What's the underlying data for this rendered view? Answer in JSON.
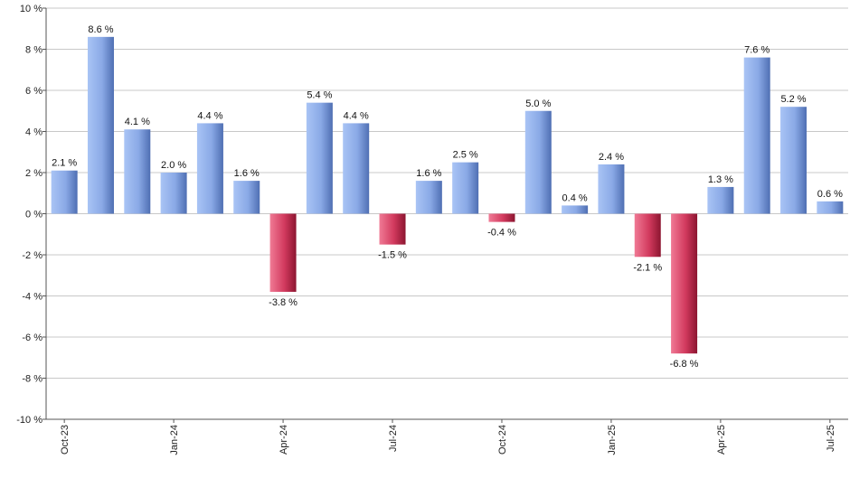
{
  "chart_data": {
    "type": "bar",
    "x": [
      "Oct-23",
      "Nov-23",
      "Dec-23",
      "Jan-24",
      "Feb-24",
      "Mar-24",
      "Apr-24",
      "May-24",
      "Jun-24",
      "Jul-24",
      "Aug-24",
      "Sep-24",
      "Oct-24",
      "Nov-24",
      "Dec-24",
      "Jan-25",
      "Feb-25",
      "Mar-25",
      "Apr-25",
      "May-25",
      "Jun-25",
      "Jul-25"
    ],
    "values": [
      2.1,
      8.6,
      4.1,
      2.0,
      4.4,
      1.6,
      -3.8,
      5.4,
      4.4,
      -1.5,
      1.6,
      2.5,
      -0.4,
      5.0,
      0.4,
      2.4,
      -2.1,
      -6.8,
      1.3,
      7.6,
      5.2,
      0.6
    ],
    "data_labels": [
      "2.1 %",
      "8.6 %",
      "4.1 %",
      "2.0 %",
      "4.4 %",
      "1.6 %",
      "-3.8 %",
      "5.4 %",
      "4.4 %",
      "-1.5 %",
      "1.6 %",
      "2.5 %",
      "-0.4 %",
      "5.0 %",
      "0.4 %",
      "2.4 %",
      "-2.1 %",
      "-6.8 %",
      "1.3 %",
      "7.6 %",
      "5.2 %",
      "0.6 %"
    ],
    "x_tick_labels": [
      "Oct-23",
      "Jan-24",
      "Apr-24",
      "Jul-24",
      "Oct-24",
      "Jan-25",
      "Apr-25",
      "Jul-25"
    ],
    "y_tick_labels": [
      "10 %",
      "8 %",
      "6 %",
      "4 %",
      "2 %",
      "0 %",
      "-2 %",
      "-4 %",
      "-6 %",
      "-8 %",
      "-10 %"
    ],
    "y_ticks": [
      10,
      8,
      6,
      4,
      2,
      0,
      -2,
      -4,
      -6,
      -8,
      -10
    ],
    "ylim": [
      -10,
      10
    ],
    "title": "",
    "xlabel": "",
    "ylabel": "",
    "grid": true,
    "legend": "none",
    "colors": {
      "positive_light": "#a9c4f5",
      "positive_dark": "#4f6fb3",
      "negative_light": "#f07a95",
      "negative_dark": "#8c1530",
      "grid": "#c8c8c8",
      "axis": "#555555"
    }
  }
}
